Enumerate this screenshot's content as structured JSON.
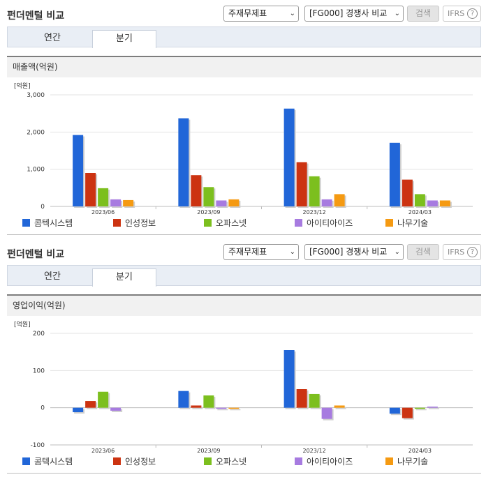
{
  "sections": [
    {
      "title": "펀더멘털 비교",
      "select1": "주재무제표",
      "select2": "[FG000] 경쟁사 비교",
      "search_label": "검색",
      "ifrs_label": "IFRS",
      "help_label": "?",
      "tabs": [
        {
          "label": "연간"
        },
        {
          "label": "분기"
        }
      ],
      "active_tab": "분기",
      "panel_title": "매출액(억원)",
      "chart_data": {
        "type": "bar",
        "unit_label": "[억원]",
        "categories": [
          "2023/06",
          "2023/09",
          "2023/12",
          "2024/03"
        ],
        "ylim": [
          0,
          3000
        ],
        "yticks": [
          0,
          1000,
          2000,
          3000
        ],
        "ytick_labels": [
          "0",
          "1,000",
          "2,000",
          "3,000"
        ],
        "grid": true,
        "legend_position": "bottom",
        "series": [
          {
            "name": "콤텍시스템",
            "color": "#2166d8",
            "values": [
              1920,
              2370,
              2630,
              1710
            ]
          },
          {
            "name": "인성정보",
            "color": "#cc3311",
            "values": [
              900,
              840,
              1190,
              720
            ]
          },
          {
            "name": "오파스넷",
            "color": "#7cbf1e",
            "values": [
              490,
              520,
              810,
              330
            ]
          },
          {
            "name": "아이티아이즈",
            "color": "#a77be0",
            "values": [
              190,
              160,
              190,
              160
            ]
          },
          {
            "name": "나무기술",
            "color": "#f59a12",
            "values": [
              170,
              190,
              330,
              160
            ]
          }
        ]
      }
    },
    {
      "title": "펀더멘털 비교",
      "select1": "주재무제표",
      "select2": "[FG000] 경쟁사 비교",
      "search_label": "검색",
      "ifrs_label": "IFRS",
      "help_label": "?",
      "tabs": [
        {
          "label": "연간"
        },
        {
          "label": "분기"
        }
      ],
      "active_tab": "분기",
      "panel_title": "영업이익(억원)",
      "chart_data": {
        "type": "bar",
        "unit_label": "[억원]",
        "categories": [
          "2023/06",
          "2023/09",
          "2023/12",
          "2024/03"
        ],
        "ylim": [
          -100,
          200
        ],
        "yticks": [
          -100,
          0,
          100,
          200
        ],
        "ytick_labels": [
          "-100",
          "0",
          "100",
          "200"
        ],
        "grid": true,
        "legend_position": "bottom",
        "series": [
          {
            "name": "콤텍시스템",
            "color": "#2166d8",
            "values": [
              -12,
              45,
              155,
              -16
            ]
          },
          {
            "name": "인성정보",
            "color": "#cc3311",
            "values": [
              18,
              6,
              50,
              -28
            ]
          },
          {
            "name": "오파스넷",
            "color": "#7cbf1e",
            "values": [
              43,
              33,
              37,
              -3
            ]
          },
          {
            "name": "아이티아이즈",
            "color": "#a77be0",
            "values": [
              -8,
              -3,
              -30,
              3
            ]
          },
          {
            "name": "나무기술",
            "color": "#f59a12",
            "values": [
              0,
              -3,
              6,
              0
            ]
          }
        ]
      }
    }
  ]
}
